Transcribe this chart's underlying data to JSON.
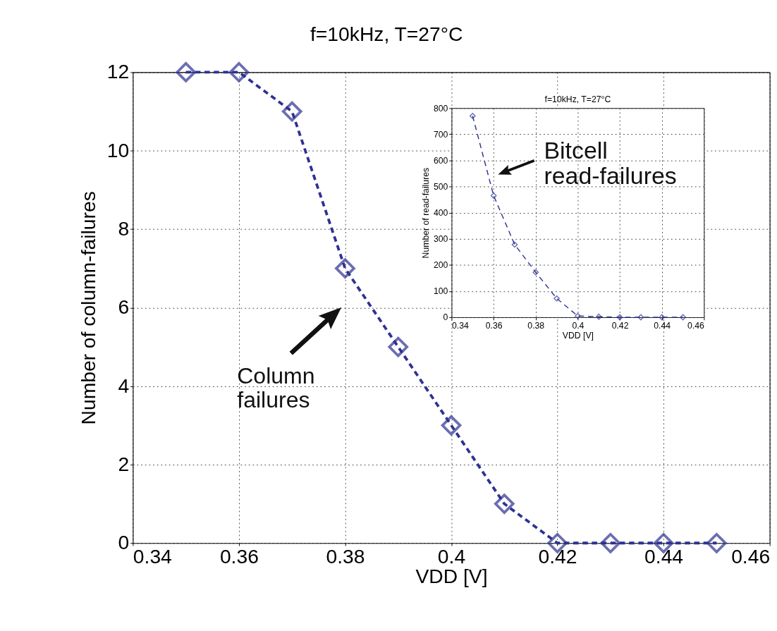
{
  "chart_data": [
    {
      "type": "line",
      "title": "f=10kHz, T=27°C",
      "xlabel": "VDD [V]",
      "ylabel": "Number of column-failures",
      "x": [
        0.35,
        0.36,
        0.37,
        0.38,
        0.39,
        0.4,
        0.41,
        0.42,
        0.43,
        0.44,
        0.45
      ],
      "series": [
        {
          "color": "#2e3192",
          "values": [
            12,
            12,
            11,
            7,
            5,
            3,
            1,
            0,
            0,
            0,
            0
          ]
        }
      ],
      "xlim": [
        0.34,
        0.46
      ],
      "xticks": [
        0.34,
        0.36,
        0.38,
        0.4,
        0.42,
        0.44,
        0.46
      ],
      "ylim": [
        0,
        12
      ],
      "yticks": [
        0,
        2,
        4,
        6,
        8,
        10,
        12
      ],
      "grid": true,
      "marker": "diamond",
      "line_style": "dashed",
      "annotations": [
        "Column\nfailures"
      ]
    },
    {
      "type": "line",
      "title": "f=10kHz, T=27°C",
      "xlabel": "VDD [V]",
      "ylabel": "Number of read-failures",
      "x": [
        0.35,
        0.36,
        0.37,
        0.38,
        0.39,
        0.4,
        0.41,
        0.42,
        0.43,
        0.44,
        0.45
      ],
      "series": [
        {
          "color": "#2e3192",
          "values": [
            770,
            465,
            278,
            172,
            72,
            5,
            2,
            0,
            0,
            0,
            0
          ]
        }
      ],
      "xlim": [
        0.34,
        0.46
      ],
      "xticks": [
        0.34,
        0.36,
        0.38,
        0.4,
        0.42,
        0.44,
        0.46
      ],
      "ylim": [
        0,
        800
      ],
      "yticks": [
        0,
        100,
        200,
        300,
        400,
        500,
        600,
        700,
        800
      ],
      "grid": true,
      "marker": "diamond",
      "line_style": "dashed",
      "annotations": [
        "Bitcell\nread-failures"
      ]
    }
  ]
}
